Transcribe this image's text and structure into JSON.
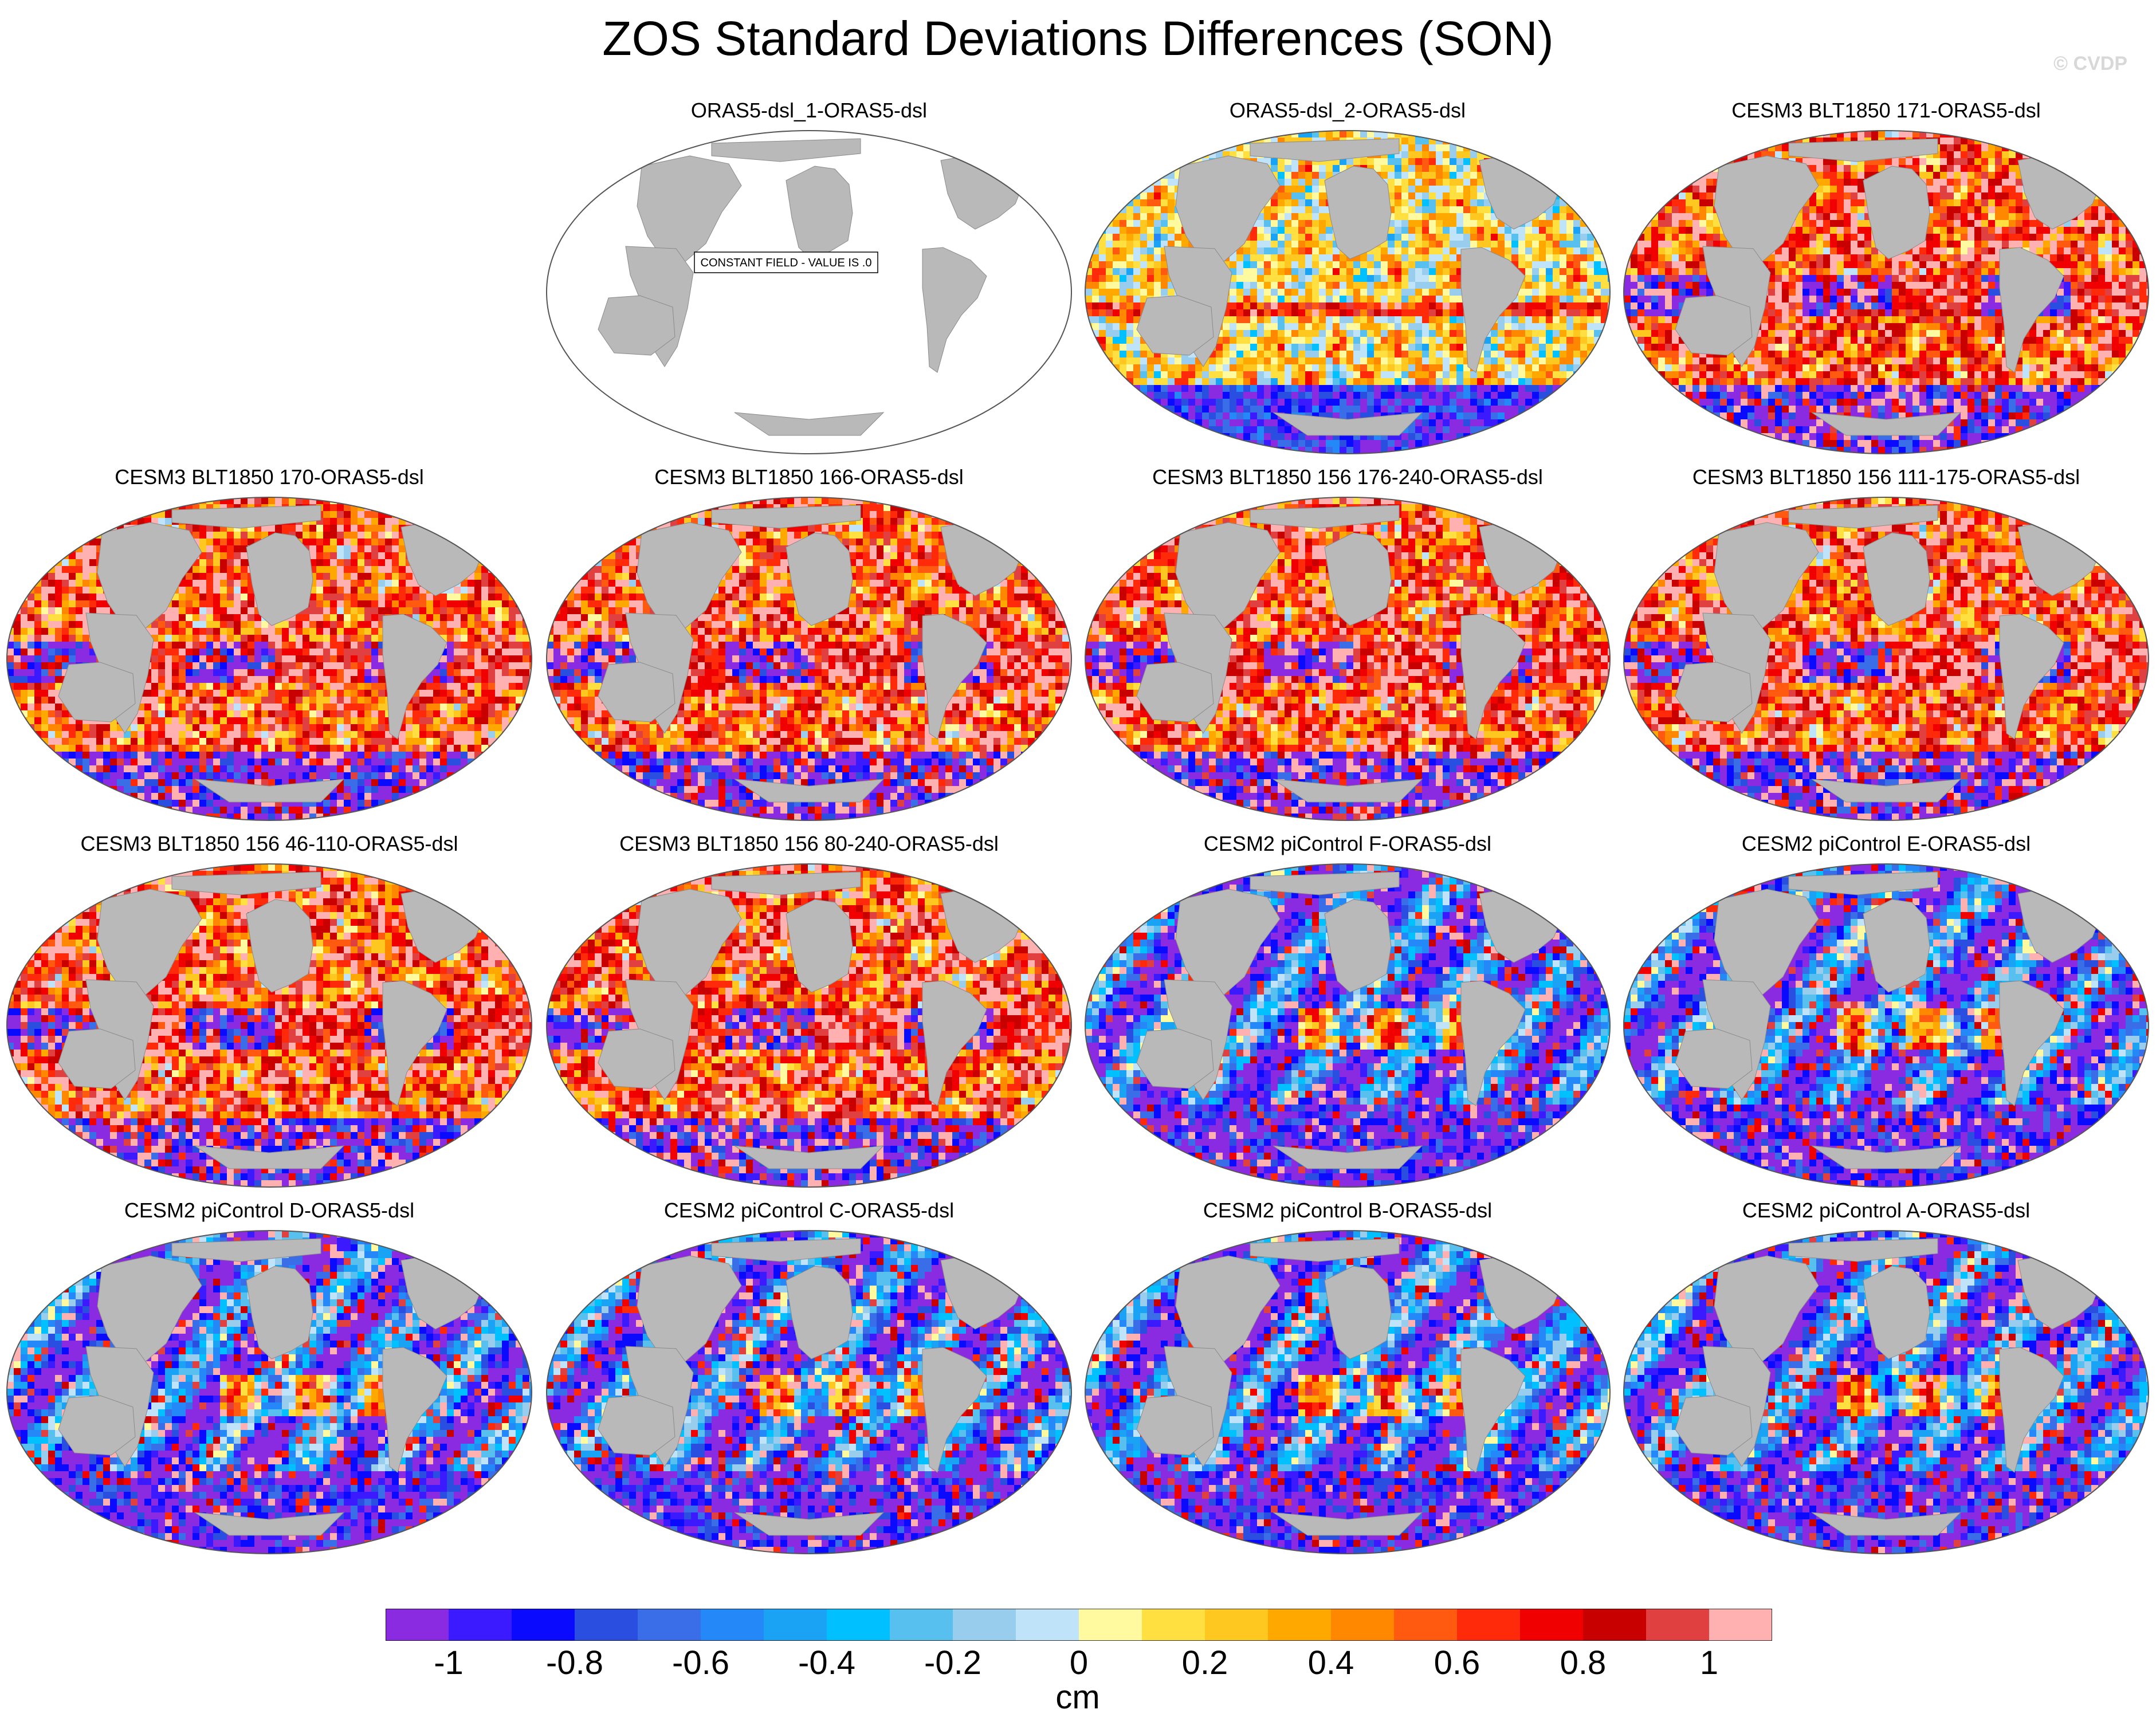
{
  "figure": {
    "title": "ZOS Standard Deviations Differences (SON)",
    "copyright": "© CVDP"
  },
  "panels": [
    {
      "title": "",
      "empty": true
    },
    {
      "title": "ORAS5-dsl_1-ORAS5-dsl",
      "style": "constant",
      "annotation": "CONSTANT FIELD - VALUE IS .0"
    },
    {
      "title": "ORAS5-dsl_2-ORAS5-dsl",
      "style": "mixed"
    },
    {
      "title": "CESM3 BLT1850 171-ORAS5-dsl",
      "style": "positive"
    },
    {
      "title": "CESM3 BLT1850 170-ORAS5-dsl",
      "style": "positive"
    },
    {
      "title": "CESM3 BLT1850 166-ORAS5-dsl",
      "style": "positive"
    },
    {
      "title": "CESM3 BLT1850 156 176-240-ORAS5-dsl",
      "style": "positive"
    },
    {
      "title": "CESM3 BLT1850 156 111-175-ORAS5-dsl",
      "style": "positive"
    },
    {
      "title": "CESM3 BLT1850 156 46-110-ORAS5-dsl",
      "style": "positive"
    },
    {
      "title": "CESM3 BLT1850 156 80-240-ORAS5-dsl",
      "style": "positive"
    },
    {
      "title": "CESM2 piControl F-ORAS5-dsl",
      "style": "negative"
    },
    {
      "title": "CESM2 piControl E-ORAS5-dsl",
      "style": "negative"
    },
    {
      "title": "CESM2 piControl D-ORAS5-dsl",
      "style": "negative"
    },
    {
      "title": "CESM2 piControl C-ORAS5-dsl",
      "style": "negative"
    },
    {
      "title": "CESM2 piControl B-ORAS5-dsl",
      "style": "negative"
    },
    {
      "title": "CESM2 piControl A-ORAS5-dsl",
      "style": "negative"
    }
  ],
  "colorbar": {
    "colors": [
      "#8a2be2",
      "#3b1aff",
      "#0a0aff",
      "#2a4ee0",
      "#3a6ee8",
      "#2488f8",
      "#1aa2f4",
      "#00c0ff",
      "#58c0ee",
      "#98cdee",
      "#bfe3f8",
      "#fffaa0",
      "#ffe040",
      "#ffc820",
      "#ffa800",
      "#ff8800",
      "#ff5a10",
      "#ff2a0a",
      "#f00000",
      "#c80000",
      "#e04040",
      "#ffb0b0"
    ],
    "tick_values": [
      "-1",
      "-0.8",
      "-0.6",
      "-0.4",
      "-0.2",
      "0",
      "0.2",
      "0.4",
      "0.6",
      "0.8",
      "1"
    ],
    "units": "cm"
  }
}
